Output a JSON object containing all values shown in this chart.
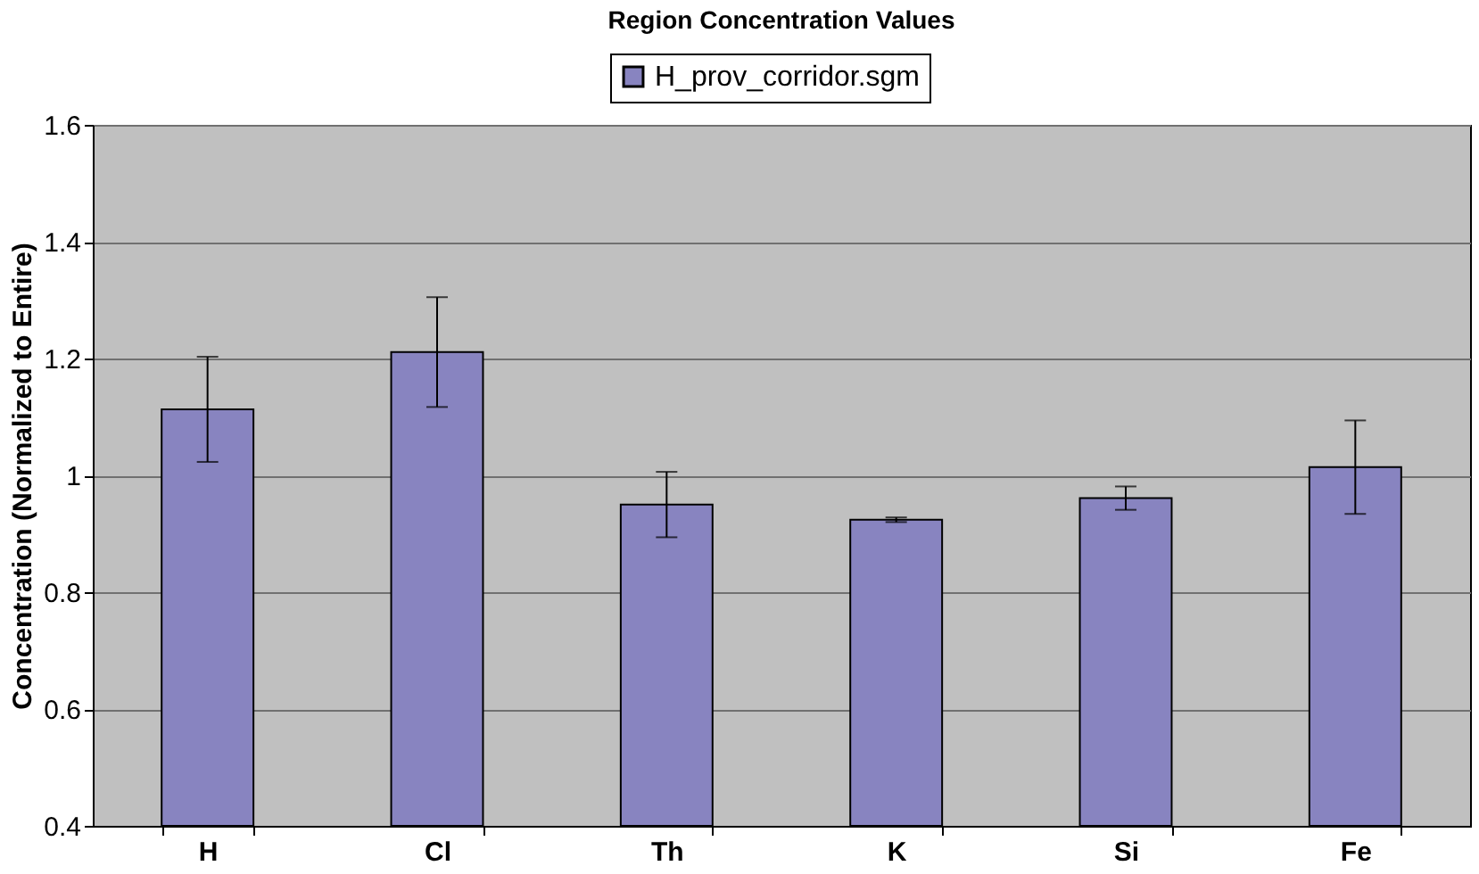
{
  "chart_data": {
    "type": "bar",
    "title": "Region Concentration Values",
    "ylabel": "Concentration (Normalized to Entire)",
    "categories": [
      "H",
      "Cl",
      "Th",
      "K",
      "Si",
      "Fe"
    ],
    "series": [
      {
        "name": "H_prov_corridor.sgm",
        "color": "#8884c0",
        "values": [
          1.113,
          1.211,
          0.95,
          0.924,
          0.961,
          1.014
        ],
        "errors": [
          0.09,
          0.094,
          0.056,
          0.004,
          0.02,
          0.08
        ]
      }
    ],
    "ylim": [
      0.4,
      1.6
    ],
    "yticks": [
      0.4,
      0.6,
      0.8,
      {
        "value": 1,
        "label": "1"
      },
      1.2,
      1.4,
      1.6
    ],
    "grid": "y",
    "legend": "top"
  }
}
